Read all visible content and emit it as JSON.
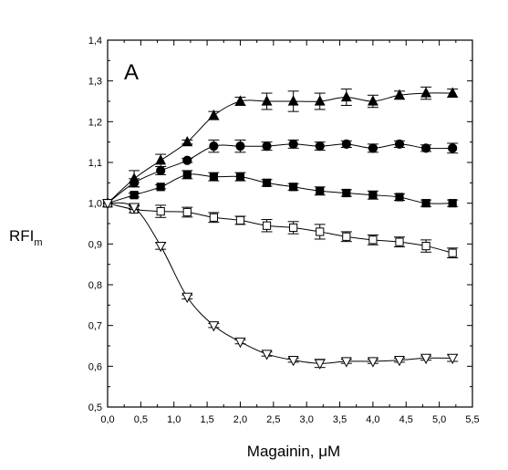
{
  "chart_data": {
    "type": "line",
    "panel_label": "A",
    "xlabel": "Magainin, μM",
    "ylabel": "RFI",
    "ylabel_sub": "m",
    "xlim": [
      0.0,
      5.5
    ],
    "ylim": [
      0.5,
      1.4
    ],
    "x_ticks": [
      "0,0",
      "0,5",
      "1,0",
      "1,5",
      "2,0",
      "2,5",
      "3,0",
      "3,5",
      "4,0",
      "4,5",
      "5,0",
      "5,5"
    ],
    "y_ticks": [
      "0,5",
      "0,6",
      "0,7",
      "0,8",
      "0,9",
      "1,0",
      "1,1",
      "1,2",
      "1,3",
      "1,4"
    ],
    "grid": false,
    "series": [
      {
        "marker": "filled-triangle-up",
        "x": [
          0,
          0.4,
          0.8,
          1.2,
          1.6,
          2.0,
          2.4,
          2.8,
          3.2,
          3.6,
          4.0,
          4.4,
          4.8,
          5.2
        ],
        "y": [
          1.0,
          1.06,
          1.105,
          1.15,
          1.215,
          1.25,
          1.25,
          1.25,
          1.25,
          1.26,
          1.25,
          1.265,
          1.27,
          1.27
        ],
        "err": [
          0,
          0.02,
          0.015,
          0.005,
          0.01,
          0.01,
          0.02,
          0.025,
          0.02,
          0.02,
          0.015,
          0.01,
          0.015,
          0.01
        ]
      },
      {
        "marker": "filled-circle",
        "x": [
          0,
          0.4,
          0.8,
          1.2,
          1.6,
          2.0,
          2.4,
          2.8,
          3.2,
          3.6,
          4.0,
          4.4,
          4.8,
          5.2
        ],
        "y": [
          1.0,
          1.05,
          1.08,
          1.105,
          1.14,
          1.14,
          1.14,
          1.145,
          1.14,
          1.145,
          1.135,
          1.145,
          1.135,
          1.135
        ],
        "err": [
          0,
          0.01,
          0.01,
          0.005,
          0.015,
          0.015,
          0.01,
          0.01,
          0.01,
          0.008,
          0.01,
          0.008,
          0.008,
          0.012
        ]
      },
      {
        "marker": "filled-square",
        "x": [
          0,
          0.4,
          0.8,
          1.2,
          1.6,
          2.0,
          2.4,
          2.8,
          3.2,
          3.6,
          4.0,
          4.4,
          4.8,
          5.2
        ],
        "y": [
          1.0,
          1.02,
          1.04,
          1.07,
          1.065,
          1.065,
          1.05,
          1.04,
          1.03,
          1.025,
          1.02,
          1.015,
          1.0,
          1.0
        ],
        "err": [
          0,
          0.005,
          0.005,
          0.01,
          0.01,
          0.01,
          0.008,
          0.008,
          0.01,
          0.008,
          0.01,
          0.008,
          0.008,
          0.008
        ]
      },
      {
        "marker": "open-square",
        "x": [
          0,
          0.4,
          0.8,
          1.2,
          1.6,
          2.0,
          2.4,
          2.8,
          3.2,
          3.6,
          4.0,
          4.4,
          4.8,
          5.2
        ],
        "y": [
          1.0,
          0.985,
          0.98,
          0.978,
          0.965,
          0.958,
          0.945,
          0.94,
          0.93,
          0.918,
          0.91,
          0.905,
          0.895,
          0.878
        ],
        "err": [
          0,
          0.008,
          0.015,
          0.012,
          0.012,
          0.01,
          0.015,
          0.015,
          0.018,
          0.012,
          0.012,
          0.012,
          0.015,
          0.012
        ]
      },
      {
        "marker": "open-triangle-down",
        "x": [
          0,
          0.4,
          0.8,
          1.2,
          1.6,
          2.0,
          2.4,
          2.8,
          3.2,
          3.6,
          4.0,
          4.4,
          4.8,
          5.2
        ],
        "y": [
          1.0,
          0.99,
          0.895,
          0.77,
          0.7,
          0.66,
          0.63,
          0.615,
          0.607,
          0.612,
          0.612,
          0.615,
          0.62,
          0.62
        ],
        "err": [
          0,
          0.005,
          0.008,
          0.005,
          0.005,
          0.005,
          0.005,
          0.005,
          0.01,
          0.005,
          0.005,
          0.005,
          0.005,
          0.008
        ]
      }
    ]
  }
}
